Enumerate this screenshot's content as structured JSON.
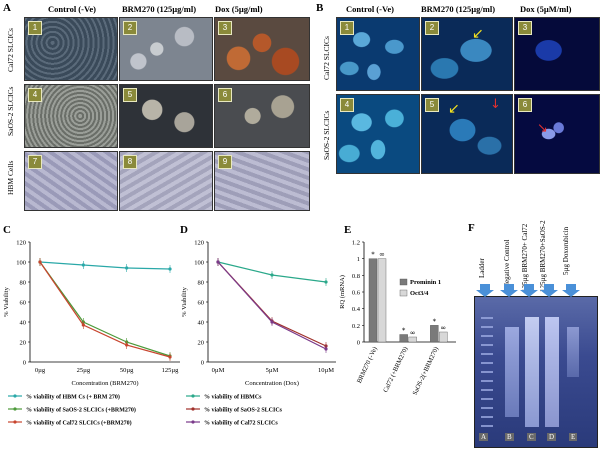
{
  "panels": {
    "A": {
      "label": "A",
      "col_headers": [
        "Control (-Ve)",
        "BRM270 (125µg/ml)",
        "Dox (5µg/ml)"
      ],
      "row_headers": [
        "Cal72 SLCICs",
        "SaOS-2 SLCICs",
        "HBM Cells"
      ],
      "tiles": [
        "1",
        "2",
        "3",
        "4",
        "5",
        "6",
        "7",
        "8",
        "9"
      ]
    },
    "B": {
      "label": "B",
      "col_headers": [
        "Control (-Ve)",
        "BRM270 (125µg/ml)",
        "Dox (5µM/ml)"
      ],
      "row_headers": [
        "Cal72 SLCICs",
        "SaOS-2 SLCICs"
      ],
      "tiles": [
        "1",
        "2",
        "3",
        "4",
        "5",
        "6"
      ]
    },
    "C": {
      "label": "C"
    },
    "D": {
      "label": "D"
    },
    "E": {
      "label": "E"
    },
    "F": {
      "label": "F",
      "lanes": [
        "Ladder",
        "Negative Control",
        "125µg BRM270+ Cal72",
        "125µg BRM270+SaOS-2",
        "5µg Doxorubicin"
      ],
      "lane_letters": [
        "A",
        "B",
        "C",
        "D",
        "E"
      ]
    }
  },
  "chart_data": [
    {
      "type": "line",
      "panel": "C",
      "categories": [
        "0µg",
        "25µg",
        "50µg",
        "125µg"
      ],
      "ylabel": "% Viability",
      "xlabel": "Concentration  (BRM270)",
      "ylim": [
        0,
        120
      ],
      "yticks": [
        0,
        20,
        40,
        60,
        80,
        100,
        120
      ],
      "series": [
        {
          "name": "% viability of HBM Cs (+ BRM 270)",
          "values": [
            100,
            97,
            94,
            93
          ],
          "color": "#2aa8a8"
        },
        {
          "name": "% viability of SaOS-2 SLCICs (+BRM270)",
          "values": [
            100,
            40,
            20,
            6
          ],
          "color": "#4c9a3a"
        },
        {
          "name": "% viability of Cal72 SLCICs (+BRM270)",
          "values": [
            100,
            37,
            17,
            5
          ],
          "color": "#c8452e"
        }
      ]
    },
    {
      "type": "line",
      "panel": "D",
      "categories": [
        "0µM",
        "5µM",
        "10µM"
      ],
      "ylabel": "% Viability",
      "xlabel": "Concentration (Dox)",
      "ylim": [
        0,
        120
      ],
      "yticks": [
        0,
        20,
        40,
        60,
        80,
        100,
        120
      ],
      "series": [
        {
          "name": "% viability of HBMCs",
          "values": [
            100,
            87,
            80
          ],
          "color": "#2aa88a"
        },
        {
          "name": "% viability of SaOS-2 SLCICs",
          "values": [
            100,
            41,
            16
          ],
          "color": "#a0302a"
        },
        {
          "name": "% viability of Cal72 SLCICs",
          "values": [
            100,
            40,
            13
          ],
          "color": "#7a3a8a"
        }
      ]
    },
    {
      "type": "bar",
      "panel": "E",
      "categories": [
        "BRM270 (-Ve)",
        "Cal72 (+BRM270)",
        "SaOS-2(+BRM270)"
      ],
      "ylabel": "RQ (mRNA)",
      "ylim": [
        0,
        1.2
      ],
      "yticks": [
        0,
        0.2,
        0.4,
        0.6,
        0.8,
        1,
        1.2
      ],
      "series": [
        {
          "name": "Prominin 1",
          "values": [
            1.0,
            0.09,
            0.2
          ],
          "color": "#7a7a7a"
        },
        {
          "name": "Oct3/4",
          "values": [
            1.0,
            0.06,
            0.12
          ],
          "color": "#d8d8d8"
        }
      ],
      "annotations": [
        [
          "*",
          "∞"
        ],
        [
          "*",
          "∞"
        ],
        [
          "*",
          "∞"
        ]
      ]
    }
  ]
}
